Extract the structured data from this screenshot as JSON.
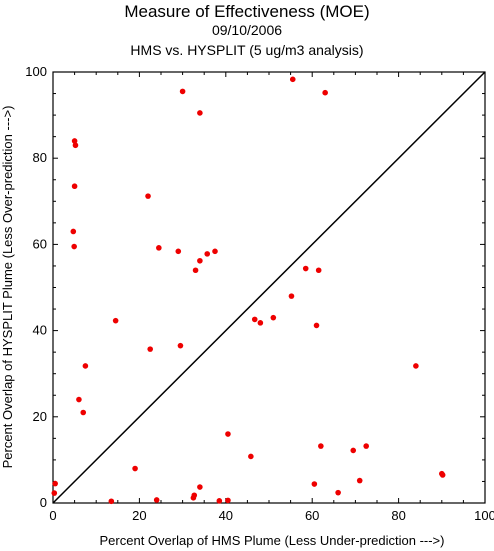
{
  "chart_data": {
    "type": "scatter",
    "title": "Measure of Effectiveness (MOE)",
    "subtitle": "09/10/2006",
    "subtitle2": "HMS vs. HYSPLIT  (5 ug/m3 analysis)",
    "xlabel": "Percent Overlap of HMS Plume (Less Under-prediction --->)",
    "ylabel": "Percent Overlap of HYSPLIT Plume (Less Over-prediction --->)",
    "xlim": [
      0,
      100
    ],
    "ylim": [
      0,
      100
    ],
    "xticks": [
      "0",
      "20",
      "40",
      "60",
      "80",
      "100"
    ],
    "yticks": [
      "0",
      "20",
      "40",
      "60",
      "80",
      "100"
    ],
    "diagonal_line": true,
    "marker_color": "#ee0000",
    "points": [
      [
        0.5,
        4.5
      ],
      [
        0.3,
        2.3
      ],
      [
        5.0,
        84.0
      ],
      [
        5.2,
        83.0
      ],
      [
        5.0,
        73.5
      ],
      [
        4.7,
        63.0
      ],
      [
        4.9,
        59.5
      ],
      [
        6.0,
        24.0
      ],
      [
        7.0,
        21.0
      ],
      [
        7.5,
        31.8
      ],
      [
        13.5,
        0.4
      ],
      [
        14.5,
        42.3
      ],
      [
        19.0,
        8.0
      ],
      [
        22.0,
        71.2
      ],
      [
        22.5,
        35.7
      ],
      [
        24.0,
        0.7
      ],
      [
        24.5,
        59.2
      ],
      [
        29.0,
        58.4
      ],
      [
        29.5,
        36.5
      ],
      [
        30.0,
        95.5
      ],
      [
        32.5,
        1.2
      ],
      [
        32.7,
        1.8
      ],
      [
        33.0,
        54.0
      ],
      [
        34.0,
        90.5
      ],
      [
        34.0,
        56.2
      ],
      [
        34.0,
        3.7
      ],
      [
        35.7,
        57.8
      ],
      [
        37.5,
        58.4
      ],
      [
        38.5,
        0.5
      ],
      [
        40.5,
        16.0
      ],
      [
        40.5,
        0.6
      ],
      [
        45.8,
        10.8
      ],
      [
        46.7,
        42.6
      ],
      [
        48.0,
        41.8
      ],
      [
        51.0,
        43.0
      ],
      [
        55.2,
        48.0
      ],
      [
        55.5,
        98.3
      ],
      [
        58.5,
        54.4
      ],
      [
        60.5,
        4.4
      ],
      [
        61.0,
        41.2
      ],
      [
        61.5,
        54.0
      ],
      [
        62.0,
        13.2
      ],
      [
        63.0,
        95.2
      ],
      [
        66.0,
        2.4
      ],
      [
        69.5,
        12.2
      ],
      [
        71.0,
        5.2
      ],
      [
        72.5,
        13.2
      ],
      [
        84.0,
        31.8
      ],
      [
        90.0,
        6.8
      ],
      [
        90.2,
        6.5
      ]
    ]
  }
}
